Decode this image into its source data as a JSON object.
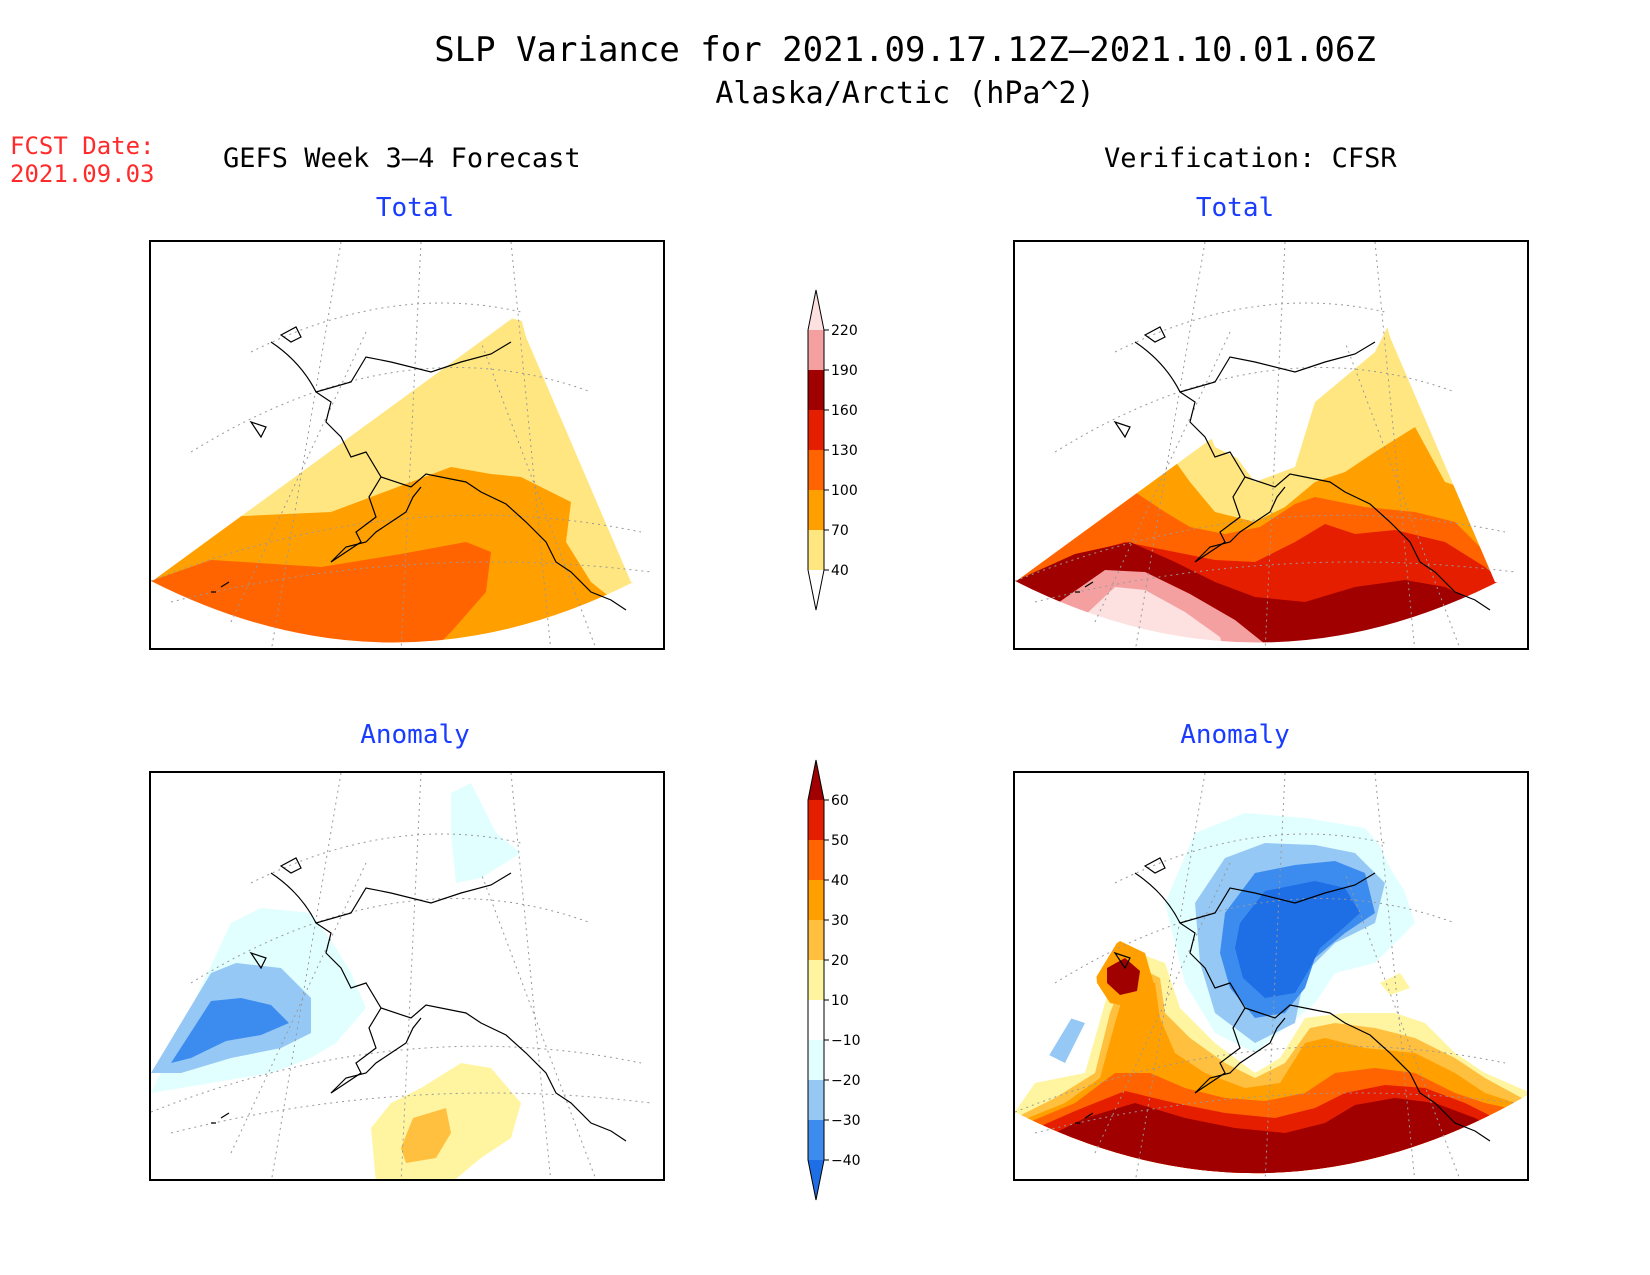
{
  "header": {
    "title": "SLP Variance for 2021.09.17.12Z–2021.10.01.06Z",
    "subtitle": "Alaska/Arctic (hPa^2)",
    "fcst_label": "FCST Date:",
    "fcst_date": "2021.09.03",
    "left_column": "GEFS Week 3–4 Forecast",
    "right_column": "Verification: CFSR"
  },
  "panels": {
    "top_left": {
      "title": "Total"
    },
    "top_right": {
      "title": "Total"
    },
    "bottom_left": {
      "title": "Anomaly"
    },
    "bottom_right": {
      "title": "Anomaly"
    }
  },
  "total_colorbar": {
    "levels": [
      "40",
      "70",
      "100",
      "130",
      "160",
      "190",
      "220"
    ],
    "colors": [
      "#ffffff",
      "#ffe680",
      "#ffa000",
      "#ff6400",
      "#e61e00",
      "#a00000",
      "#f5a0a0",
      "#fde0e0"
    ]
  },
  "anomaly_colorbar": {
    "levels": [
      "−40",
      "−30",
      "−20",
      "−10",
      "10",
      "20",
      "30",
      "40",
      "50",
      "60"
    ],
    "colors": [
      "#1e6ee6",
      "#3c8cf0",
      "#96c8f5",
      "#e1ffff",
      "#ffffff",
      "#fff5a0",
      "#ffc040",
      "#ffa000",
      "#ff6400",
      "#e61e00",
      "#a00000"
    ]
  },
  "map_colors": {
    "yellow": "#ffe680",
    "orange": "#ffa000",
    "dark_orange": "#ff6400",
    "red": "#e61e00",
    "dark_red": "#a00000",
    "pink": "#f5a0a0",
    "light_pink": "#fde0e0",
    "pale_yellow": "#fff5a0",
    "light_orange": "#ffc040",
    "pale_cyan": "#e1ffff",
    "light_blue": "#96c8f5",
    "mid_blue": "#3c8cf0",
    "blue": "#1e6ee6"
  }
}
